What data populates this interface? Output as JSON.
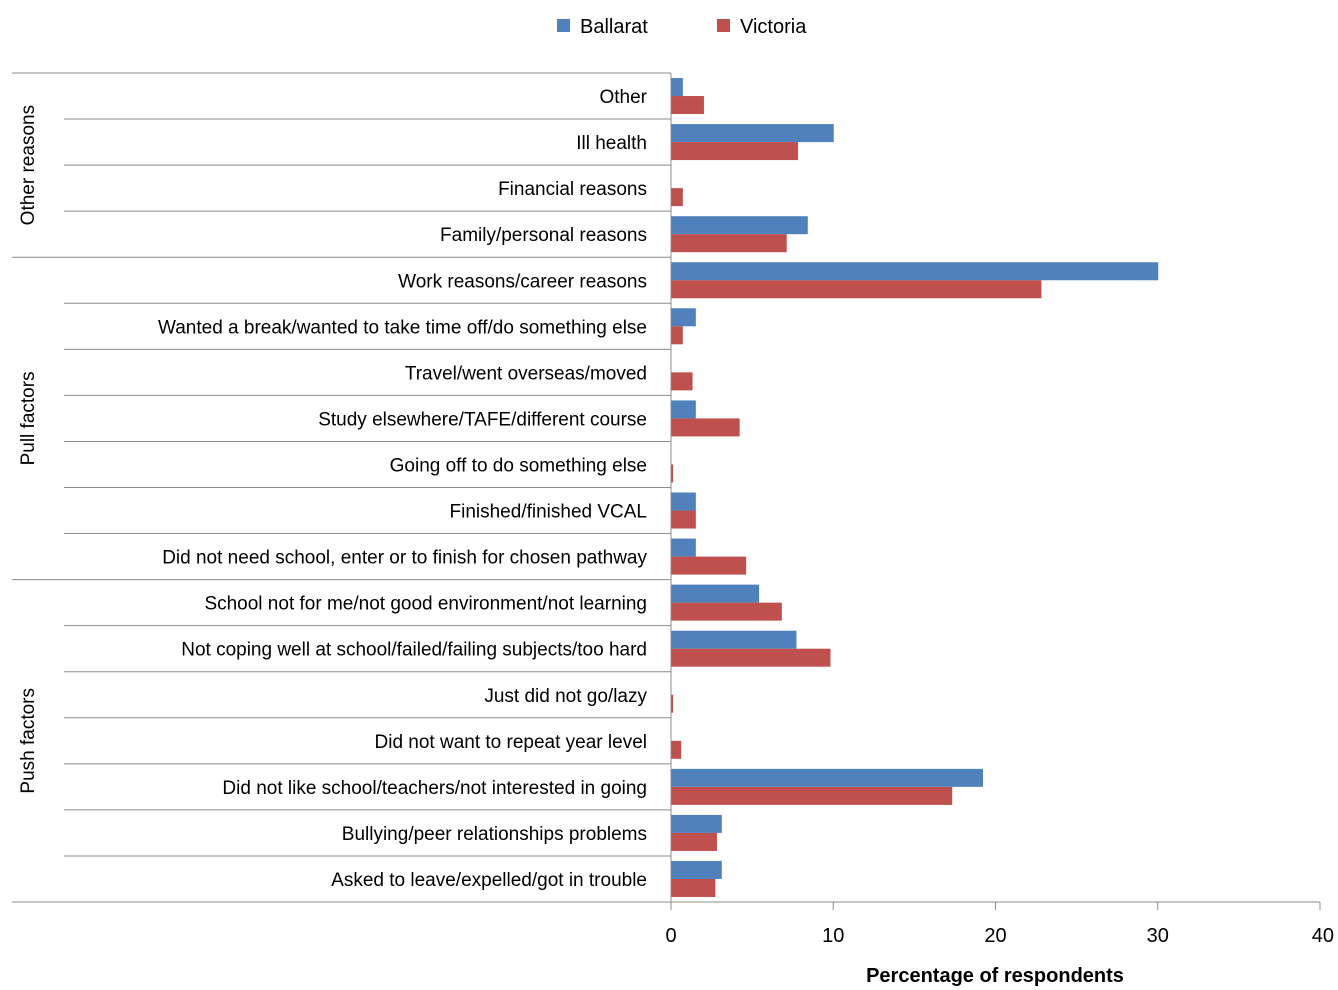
{
  "chart_data": {
    "type": "bar",
    "orientation": "horizontal",
    "xlabel": "Percentage of respondents",
    "xlim": [
      0,
      40
    ],
    "xticks": [
      0,
      10,
      20,
      30,
      40
    ],
    "legend": {
      "placement": "top-center",
      "entries": [
        "Ballarat",
        "Victoria"
      ]
    },
    "grid": false,
    "groups": [
      {
        "name": "Other reasons",
        "categories": [
          "Other",
          "Ill health",
          "Financial reasons",
          "Family/personal reasons"
        ]
      },
      {
        "name": "Pull factors",
        "categories": [
          "Work reasons/career reasons",
          "Wanted a break/wanted to take time off/do something else",
          "Travel/went overseas/moved",
          "Study elsewhere/TAFE/different course",
          "Going off to do something else",
          "Finished/finished VCAL",
          "Did not need school, enter or to finish for chosen pathway"
        ]
      },
      {
        "name": "Push factors",
        "categories": [
          "School not for me/not good environment/not learning",
          "Not coping well at school/failed/failing subjects/too hard",
          "Just did not go/lazy",
          "Did not want to repeat year level",
          "Did not like school/teachers/not interested in going",
          "Bullying/peer relationships problems",
          "Asked to leave/expelled/got in trouble"
        ]
      }
    ],
    "categories": [
      "Other",
      "Ill health",
      "Financial reasons",
      "Family/personal reasons",
      "Work reasons/career reasons",
      "Wanted a break/wanted to take time off/do something else",
      "Travel/went overseas/moved",
      "Study elsewhere/TAFE/different course",
      "Going off to do something else",
      "Finished/finished VCAL",
      "Did not need school, enter or to finish for chosen pathway",
      "School not for me/not good environment/not learning",
      "Not coping well at school/failed/failing subjects/too hard",
      "Just did not go/lazy",
      "Did not want to repeat year level",
      "Did not like school/teachers/not interested in going",
      "Bullying/peer relationships problems",
      "Asked to leave/expelled/got in trouble"
    ],
    "series": [
      {
        "name": "Ballarat",
        "color": "#4F81BD",
        "values": [
          0.7,
          10.0,
          0,
          8.4,
          30.0,
          1.5,
          0,
          1.5,
          0,
          1.5,
          1.5,
          5.4,
          7.7,
          0,
          0,
          19.2,
          3.1,
          3.1
        ]
      },
      {
        "name": "Victoria",
        "color": "#C0504D",
        "values": [
          2.0,
          7.8,
          0.7,
          7.1,
          22.8,
          0.7,
          1.3,
          4.2,
          0.1,
          1.5,
          4.6,
          6.8,
          9.8,
          0.1,
          0.6,
          17.3,
          2.8,
          2.7
        ]
      }
    ]
  }
}
